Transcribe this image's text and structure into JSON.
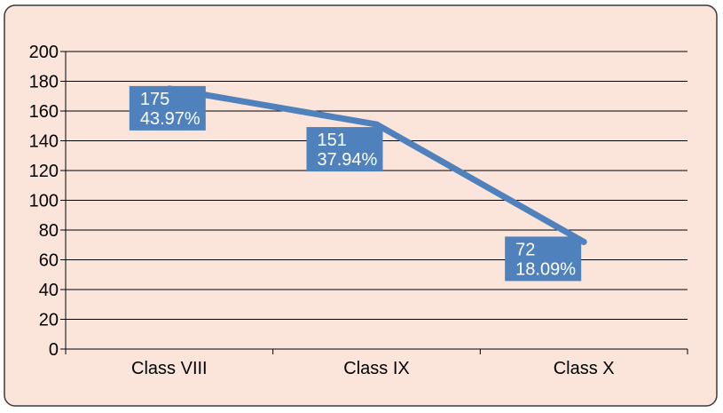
{
  "chart_data": {
    "type": "line",
    "categories": [
      "Class VIII",
      "Class IX",
      "Class X"
    ],
    "series": [
      {
        "values": [
          175,
          151,
          72
        ],
        "percents": [
          "43.97%",
          "37.94%",
          "18.09%"
        ]
      }
    ],
    "ylim": [
      0,
      200
    ],
    "yticks": [
      0,
      20,
      40,
      60,
      80,
      100,
      120,
      140,
      160,
      180,
      200
    ],
    "grid": true,
    "colors": {
      "background": "#fbe5db",
      "border": "#3a3a3a",
      "line": "#4f81bd",
      "label_box": "#4f81bd",
      "label_text": "#ffffff",
      "axis": "#000000"
    }
  }
}
